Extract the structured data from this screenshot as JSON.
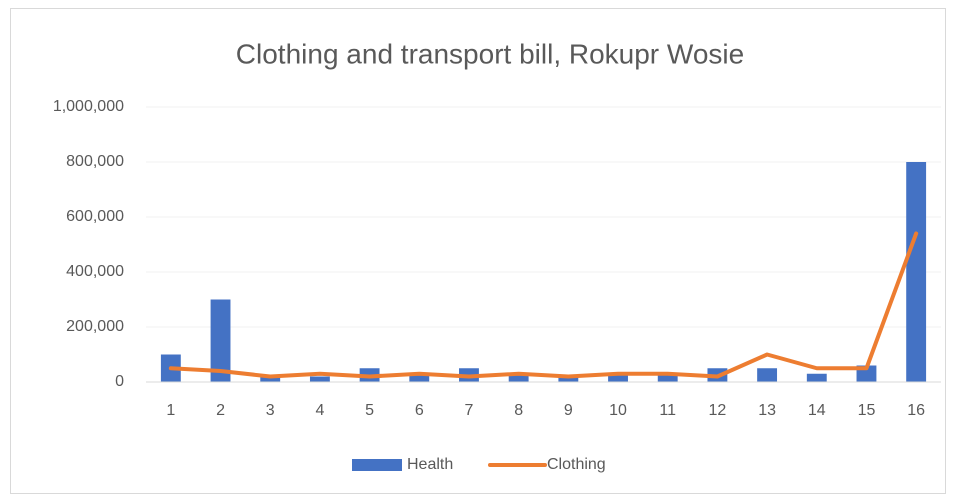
{
  "chart_data": {
    "type": "bar-line",
    "title": "Clothing and transport bill, Rokupr Wosie",
    "categories": [
      "1",
      "2",
      "3",
      "4",
      "5",
      "6",
      "7",
      "8",
      "9",
      "10",
      "11",
      "12",
      "13",
      "14",
      "15",
      "16"
    ],
    "series": [
      {
        "name": "Health",
        "type": "bar",
        "color": "#4472c4",
        "values": [
          100000,
          300000,
          20000,
          20000,
          50000,
          25000,
          50000,
          25000,
          20000,
          30000,
          30000,
          50000,
          50000,
          30000,
          60000,
          800000
        ]
      },
      {
        "name": "Clothing",
        "type": "line",
        "color": "#ed7d31",
        "values": [
          50000,
          40000,
          20000,
          30000,
          20000,
          30000,
          20000,
          30000,
          20000,
          30000,
          30000,
          20000,
          100000,
          50000,
          50000,
          540000
        ]
      }
    ],
    "ylim": [
      0,
      1000000
    ],
    "yticks": [
      0,
      {
        "value": 200000,
        "label": "200,000"
      },
      {
        "value": 400000,
        "label": "400,000"
      },
      {
        "value": 600000,
        "label": "600,000"
      },
      {
        "value": 800000,
        "label": "800,000"
      },
      {
        "value": 1000000,
        "label": "1,000,000"
      }
    ],
    "legend": "bottom"
  }
}
